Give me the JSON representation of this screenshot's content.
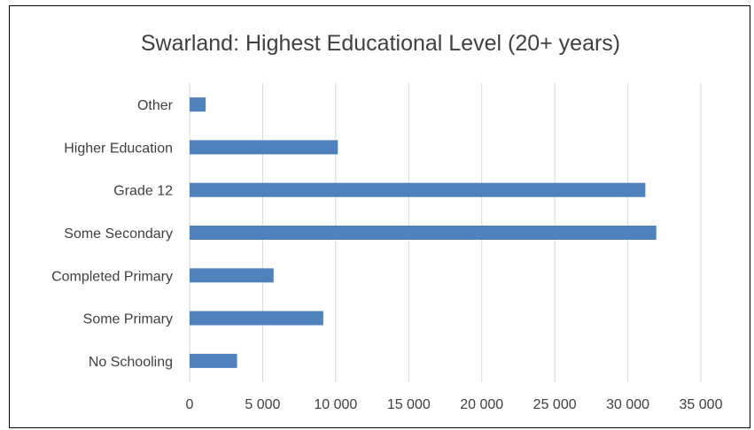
{
  "chart_data": {
    "type": "bar",
    "orientation": "horizontal",
    "title": "Swarland: Highest Educational Level (20+ years)",
    "categories": [
      "Other",
      "Higher Education",
      "Grade 12",
      "Some Secondary",
      "Completed Primary",
      "Some Primary",
      "No Schooling"
    ],
    "values": [
      1100,
      10150,
      31200,
      31950,
      5750,
      9150,
      3250
    ],
    "xlim": [
      0,
      35000
    ],
    "xticks": [
      0,
      5000,
      10000,
      15000,
      20000,
      25000,
      30000,
      35000
    ],
    "xtick_labels": [
      "0",
      "5 000",
      "10 000",
      "15 000",
      "20 000",
      "25 000",
      "30 000",
      "35 000"
    ],
    "grid": "vertical",
    "legend": "none",
    "bar_color": "#4f81bd",
    "grid_color": "#d9d9d9"
  }
}
